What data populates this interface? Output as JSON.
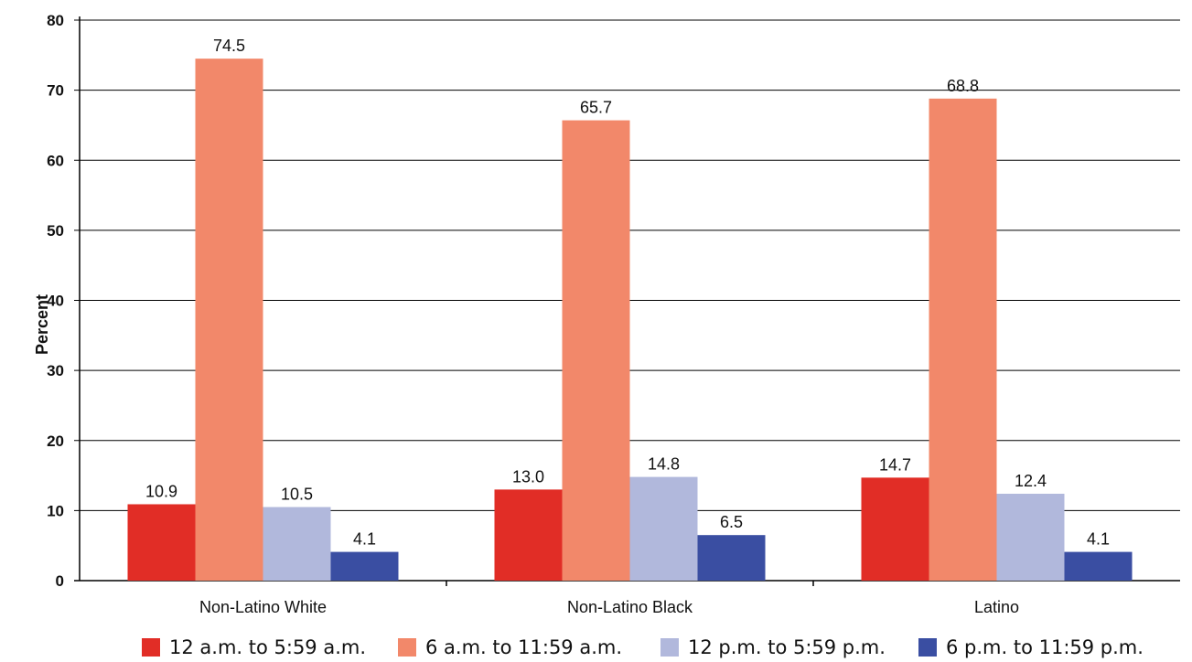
{
  "chart_data": {
    "type": "bar",
    "title": "",
    "xlabel": "",
    "ylabel": "Percent",
    "ylim": [
      0,
      80
    ],
    "yticks": [
      0,
      10,
      20,
      30,
      40,
      50,
      60,
      70,
      80
    ],
    "grid": true,
    "legend_position": "bottom",
    "categories": [
      "Non-Latino White",
      "Non-Latino Black",
      "Latino"
    ],
    "series": [
      {
        "name": "12 a.m. to 5:59 a.m.",
        "color": "#e12d26",
        "values": [
          10.9,
          13.0,
          14.7
        ],
        "labels": [
          "10.9",
          "13.0",
          "14.7"
        ]
      },
      {
        "name": "6 a.m. to 11:59 a.m.",
        "color": "#f2886a",
        "values": [
          74.5,
          65.7,
          68.8
        ],
        "labels": [
          "74.5",
          "65.7",
          "68.8"
        ]
      },
      {
        "name": "12 p.m. to 5:59 p.m.",
        "color": "#b1b8dc",
        "values": [
          10.5,
          14.8,
          12.4
        ],
        "labels": [
          "10.5",
          "14.8",
          "12.4"
        ]
      },
      {
        "name": "6 p.m. to 11:59 p.m.",
        "color": "#3a4ea2",
        "values": [
          4.1,
          6.5,
          4.1
        ],
        "labels": [
          "4.1",
          "6.5",
          "4.1"
        ]
      }
    ]
  }
}
